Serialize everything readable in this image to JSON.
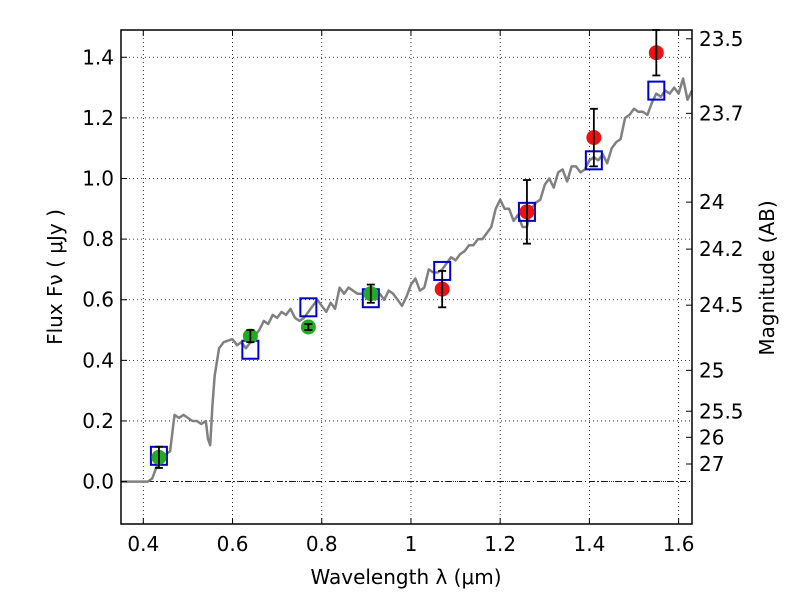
{
  "chart_data": {
    "type": "scatter",
    "xlabel": "Wavelength  λ (μm)",
    "ylabel": "Flux  Fν  ( μJy )",
    "ylabel_right": "Magnitude (AB)",
    "xlim": [
      0.35,
      1.63
    ],
    "ylim": [
      -0.14,
      1.49
    ],
    "grid": true,
    "x_ticks": [
      0.4,
      0.6,
      0.8,
      1.0,
      1.2,
      1.4,
      1.6
    ],
    "x_tick_labels": [
      "0.4",
      "0.6",
      "0.8",
      "1",
      "1.2",
      "1.4",
      "1.6"
    ],
    "y_ticks": [
      0.0,
      0.2,
      0.4,
      0.6,
      0.8,
      1.0,
      1.2,
      1.4
    ],
    "y_tick_labels": [
      "0.0",
      "0.2",
      "0.4",
      "0.6",
      "0.8",
      "1.0",
      "1.2",
      "1.4"
    ],
    "right_ticks": [
      {
        "label": "23.5",
        "flux": 1.461
      },
      {
        "label": "23.7",
        "flux": 1.215
      },
      {
        "label": "24",
        "flux": 0.922
      },
      {
        "label": "24.2",
        "flux": 0.767
      },
      {
        "label": "24.5",
        "flux": 0.582
      },
      {
        "label": "25",
        "flux": 0.367
      },
      {
        "label": "25.5",
        "flux": 0.232
      },
      {
        "label": "26",
        "flux": 0.146
      },
      {
        "label": "27",
        "flux": 0.058
      }
    ],
    "colors": {
      "model": "#808080",
      "model_boxes": "#0000cc",
      "green_points": "#22aa22",
      "red_points": "#ee1111",
      "errorbar": "#000000"
    },
    "series": [
      {
        "type": "line",
        "x": [
          0.35,
          0.41,
          0.42,
          0.43,
          0.44,
          0.45,
          0.46,
          0.465,
          0.47,
          0.48,
          0.49,
          0.5,
          0.51,
          0.52,
          0.53,
          0.54,
          0.545,
          0.55,
          0.555,
          0.56,
          0.57,
          0.58,
          0.6,
          0.61,
          0.62,
          0.63,
          0.64,
          0.65,
          0.66,
          0.67,
          0.68,
          0.69,
          0.7,
          0.71,
          0.72,
          0.73,
          0.74,
          0.75,
          0.76,
          0.77,
          0.78,
          0.79,
          0.8,
          0.81,
          0.82,
          0.83,
          0.84,
          0.85,
          0.86,
          0.87,
          0.88,
          0.89,
          0.9,
          0.91,
          0.92,
          0.93,
          0.94,
          0.95,
          0.96,
          0.97,
          0.98,
          0.99,
          1.0,
          1.01,
          1.02,
          1.03,
          1.04,
          1.05,
          1.06,
          1.07,
          1.08,
          1.09,
          1.1,
          1.11,
          1.12,
          1.13,
          1.14,
          1.15,
          1.16,
          1.17,
          1.18,
          1.19,
          1.2,
          1.21,
          1.22,
          1.23,
          1.24,
          1.25,
          1.26,
          1.27,
          1.28,
          1.29,
          1.3,
          1.31,
          1.32,
          1.33,
          1.34,
          1.35,
          1.36,
          1.37,
          1.38,
          1.39,
          1.4,
          1.41,
          1.42,
          1.43,
          1.44,
          1.45,
          1.46,
          1.47,
          1.48,
          1.49,
          1.5,
          1.51,
          1.52,
          1.53,
          1.54,
          1.55,
          1.56,
          1.57,
          1.58,
          1.59,
          1.6,
          1.61,
          1.62,
          1.63
        ],
        "y": [
          0.0,
          0.0,
          0.01,
          0.05,
          0.07,
          0.09,
          0.1,
          0.16,
          0.22,
          0.21,
          0.22,
          0.21,
          0.2,
          0.2,
          0.19,
          0.2,
          0.14,
          0.12,
          0.25,
          0.35,
          0.44,
          0.46,
          0.47,
          0.45,
          0.46,
          0.44,
          0.46,
          0.48,
          0.5,
          0.53,
          0.52,
          0.55,
          0.54,
          0.56,
          0.55,
          0.57,
          0.54,
          0.53,
          0.54,
          0.56,
          0.58,
          0.6,
          0.58,
          0.56,
          0.59,
          0.57,
          0.64,
          0.62,
          0.64,
          0.63,
          0.62,
          0.62,
          0.61,
          0.61,
          0.6,
          0.62,
          0.6,
          0.63,
          0.62,
          0.6,
          0.58,
          0.61,
          0.65,
          0.67,
          0.63,
          0.64,
          0.7,
          0.69,
          0.69,
          0.7,
          0.72,
          0.74,
          0.73,
          0.75,
          0.76,
          0.78,
          0.78,
          0.8,
          0.8,
          0.82,
          0.84,
          0.9,
          0.93,
          0.9,
          0.9,
          0.86,
          0.88,
          0.84,
          0.84,
          0.9,
          0.92,
          0.93,
          0.98,
          1.0,
          0.97,
          1.02,
          1.03,
          0.99,
          1.04,
          1.04,
          1.02,
          1.03,
          1.06,
          1.07,
          1.06,
          1.08,
          1.05,
          1.1,
          1.12,
          1.13,
          1.2,
          1.21,
          1.23,
          1.22,
          1.22,
          1.21,
          1.25,
          1.28,
          1.27,
          1.29,
          1.28,
          1.3,
          1.28,
          1.33,
          1.26,
          1.29
        ],
        "color": "#808080"
      },
      {
        "type": "boxes",
        "x": [
          0.435,
          0.64,
          0.77,
          0.91,
          1.07,
          1.26,
          1.41,
          1.55
        ],
        "y": [
          0.085,
          0.435,
          0.575,
          0.605,
          0.695,
          0.89,
          1.06,
          1.29
        ],
        "color": "#0000cc"
      },
      {
        "type": "points",
        "x": [
          0.435,
          0.64,
          0.77,
          0.91
        ],
        "y": [
          0.08,
          0.48,
          0.51,
          0.62
        ],
        "yerr": [
          0.035,
          0.02,
          0.01,
          0.03
        ],
        "color": "#22aa22"
      },
      {
        "type": "points",
        "x": [
          1.07,
          1.26,
          1.41,
          1.55
        ],
        "y": [
          0.635,
          0.89,
          1.135,
          1.415
        ],
        "yerr": [
          0.06,
          0.105,
          0.095,
          0.075
        ],
        "color": "#ee1111"
      }
    ]
  }
}
